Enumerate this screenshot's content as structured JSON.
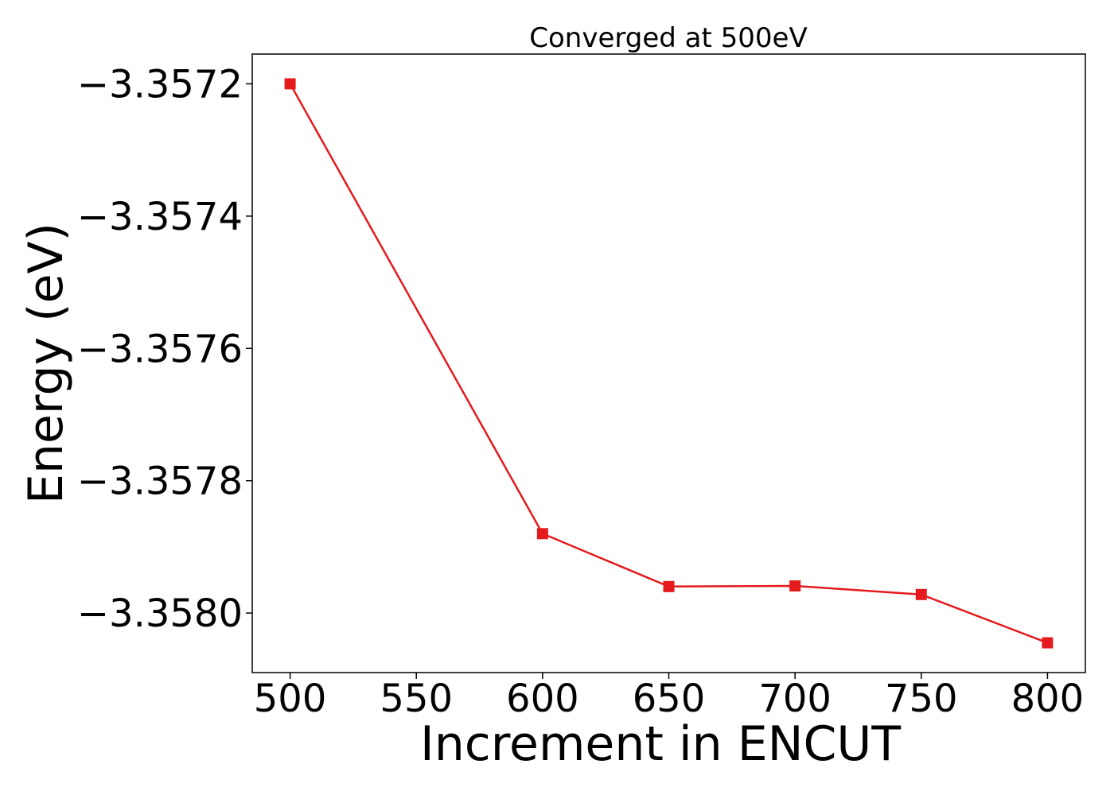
{
  "chart_data": {
    "type": "line",
    "title": "Converged at 500eV",
    "xlabel": "Increment in ENCUT",
    "ylabel": "Energy (eV)",
    "x": [
      500,
      600,
      650,
      700,
      750,
      800
    ],
    "series": [
      {
        "values": [
          -3.3572,
          -3.35788,
          -3.35796,
          -3.357959,
          -3.357972,
          -3.358045
        ]
      }
    ],
    "xlim": [
      485,
      815
    ],
    "ylim": [
      -3.35809,
      -3.357155
    ],
    "xticks": [
      500,
      550,
      600,
      650,
      700,
      750,
      800
    ],
    "xtick_labels": [
      "500",
      "550",
      "600",
      "650",
      "700",
      "750",
      "800"
    ],
    "yticks": [
      -3.3572,
      -3.3574,
      -3.3576,
      -3.3578,
      -3.358
    ],
    "ytick_labels": [
      "−3.3572",
      "−3.3574",
      "−3.3576",
      "−3.3578",
      "−3.3580"
    ],
    "marker": "square",
    "line_color": "#e41a1c",
    "grid": false,
    "legend": "none"
  }
}
